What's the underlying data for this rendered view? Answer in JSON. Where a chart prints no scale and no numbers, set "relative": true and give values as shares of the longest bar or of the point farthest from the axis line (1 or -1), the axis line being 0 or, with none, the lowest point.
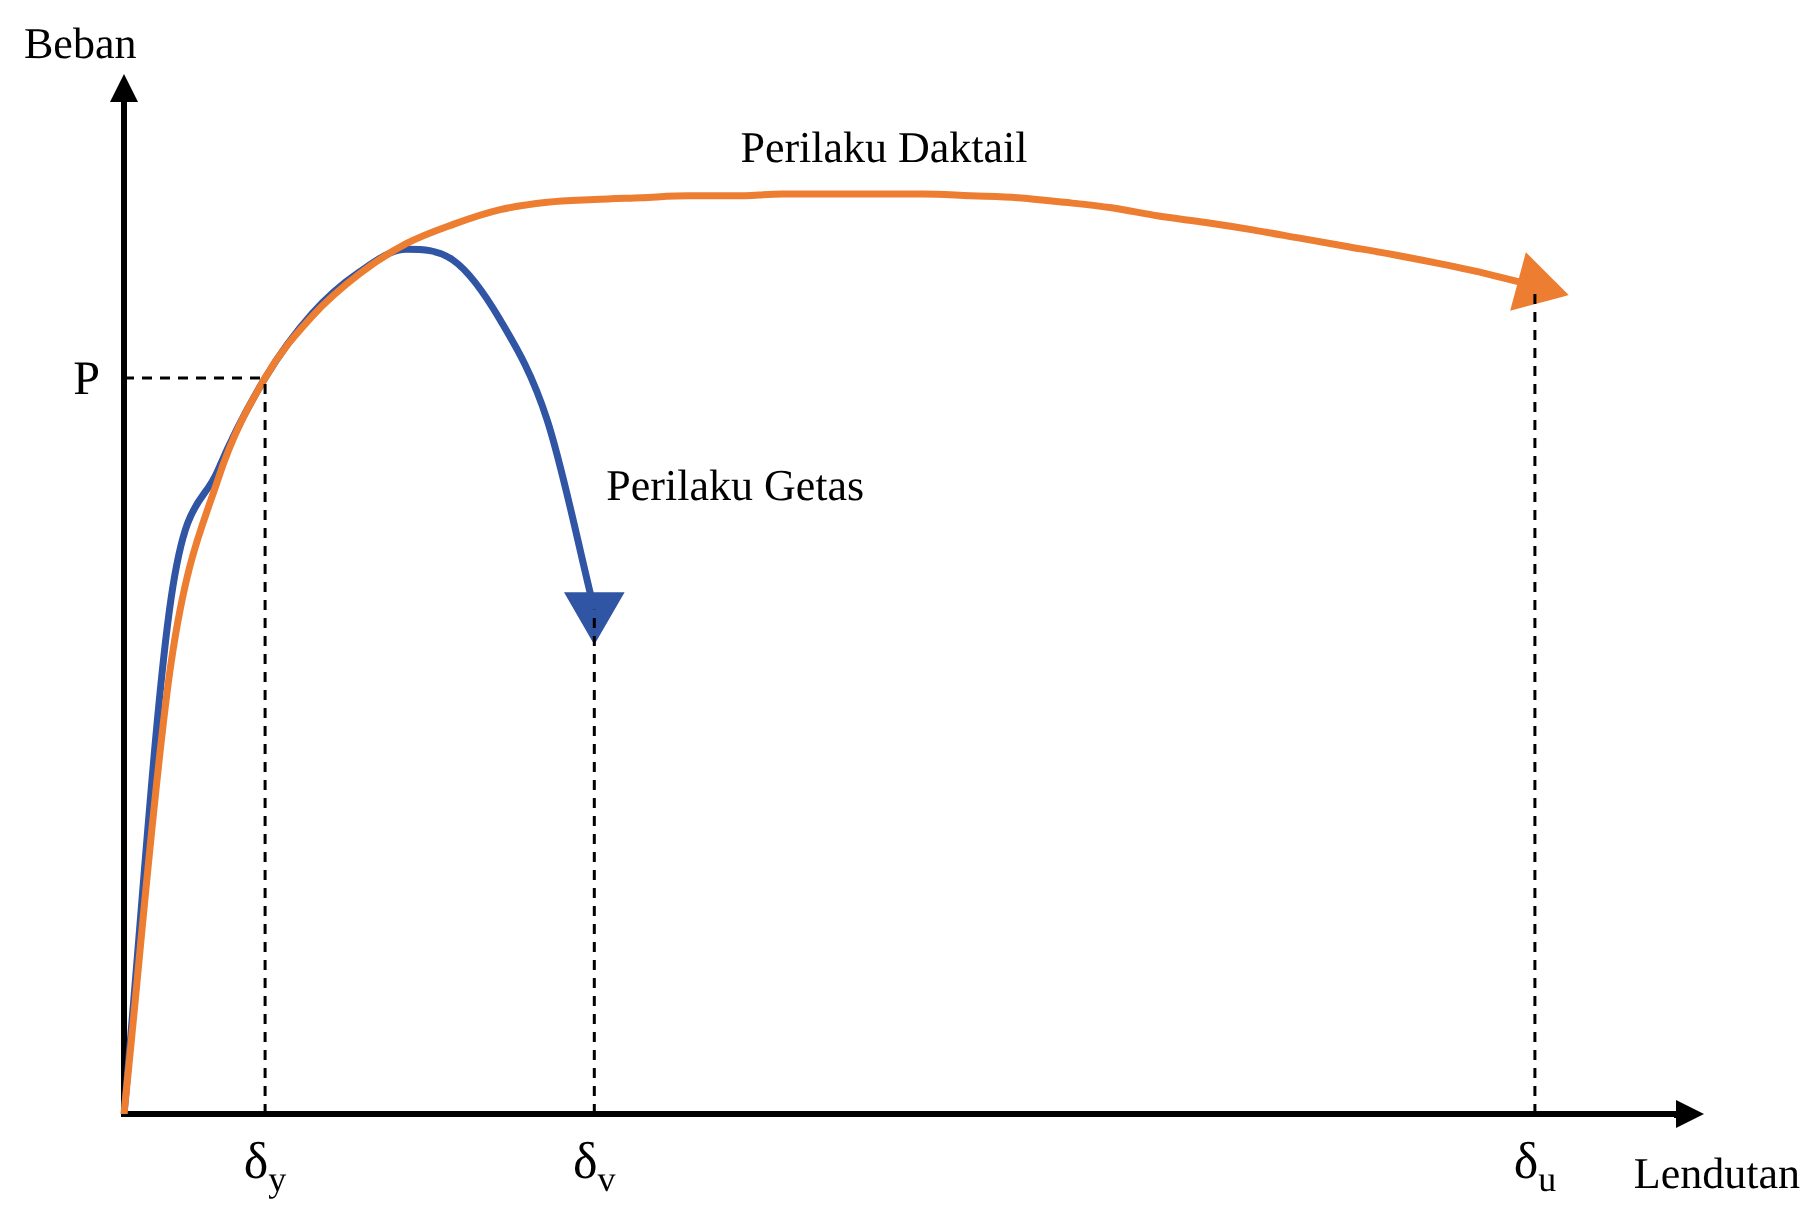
{
  "chart_data": {
    "type": "line",
    "relative": true,
    "xlabel": "Lendutan",
    "ylabel": "Beban",
    "categories": [
      null,
      null,
      null,
      "δ$_{y}$",
      null,
      null,
      null,
      null,
      null,
      null,
      "δ$_{v}$",
      null,
      null,
      null,
      null,
      null,
      null,
      null,
      null,
      null,
      null,
      null,
      null,
      null,
      null,
      null,
      null,
      null,
      null,
      null,
      "δ$_{u}$",
      null,
      null,
      null
    ],
    "series": [
      {
        "name": "Perilaku Daktail",
        "color": "#ed7d31",
        "values": [
          0,
          0.49,
          0.69,
          0.8,
          0.867,
          0.913,
          0.946,
          0.967,
          0.983,
          0.991,
          0.994,
          0.996,
          0.998,
          0.998,
          1,
          1,
          1,
          1,
          0.998,
          0.996,
          0.991,
          0.985,
          0.976,
          0.969,
          0.961,
          0.952,
          0.943,
          0.934,
          0.924,
          0.913,
          0.9,
          null,
          null,
          null
        ]
      },
      {
        "name": "Perilaku Getas",
        "color": "#2f55a4",
        "values": [
          0,
          0.56,
          0.7,
          0.8,
          0.87,
          0.915,
          0.94,
          0.928,
          0.863,
          0.754,
          0.548,
          null,
          null,
          null,
          null,
          null,
          null,
          null,
          null,
          null,
          null,
          null,
          null,
          null,
          null,
          null,
          null,
          null,
          null,
          null,
          null,
          null,
          null,
          null
        ]
      }
    ],
    "ref_lines": [
      {
        "axis": "y",
        "value": 0.8,
        "label": "P",
        "line_style": "dashed"
      },
      {
        "axis": "x",
        "value": "δ$_{y}$",
        "line_style": "dashed"
      },
      {
        "axis": "x",
        "value": "δ$_{v}$",
        "line_style": "dashed"
      },
      {
        "axis": "x",
        "value": "δ$_{u}$",
        "line_style": "dashed"
      }
    ],
    "grid": false,
    "legend": false
  }
}
